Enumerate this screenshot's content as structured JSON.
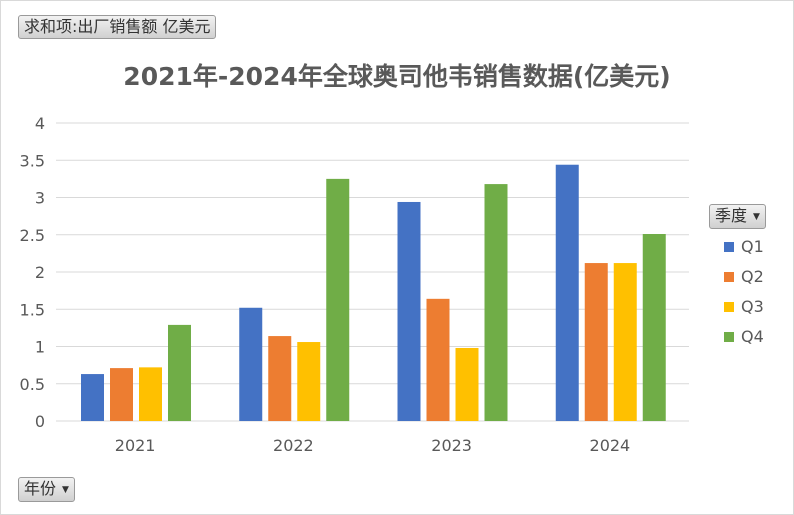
{
  "filters": {
    "value_field": "求和项:出厂销售额 亿美元",
    "legend_field": "季度",
    "axis_field": "年份",
    "dropdown_icon": "triangle-down-icon"
  },
  "chart_data": {
    "type": "bar",
    "title": "2021年-2024年全球奥司他韦销售数据(亿美元)",
    "categories": [
      "2021",
      "2022",
      "2023",
      "2024"
    ],
    "series": [
      {
        "name": "Q1",
        "color": "#4472c4",
        "values": [
          0.63,
          1.52,
          2.94,
          3.44
        ]
      },
      {
        "name": "Q2",
        "color": "#ed7d31",
        "values": [
          0.71,
          1.14,
          1.64,
          2.12
        ]
      },
      {
        "name": "Q3",
        "color": "#ffc000",
        "values": [
          0.72,
          1.06,
          0.98,
          2.12
        ]
      },
      {
        "name": "Q4",
        "color": "#70ad47",
        "values": [
          1.29,
          3.25,
          3.18,
          2.51
        ]
      }
    ],
    "yticks": [
      "0",
      "0.5",
      "1",
      "1.5",
      "2",
      "2.5",
      "3",
      "3.5",
      "4"
    ],
    "ylim": [
      0,
      4
    ],
    "grid": true,
    "legend_placement": "right"
  }
}
